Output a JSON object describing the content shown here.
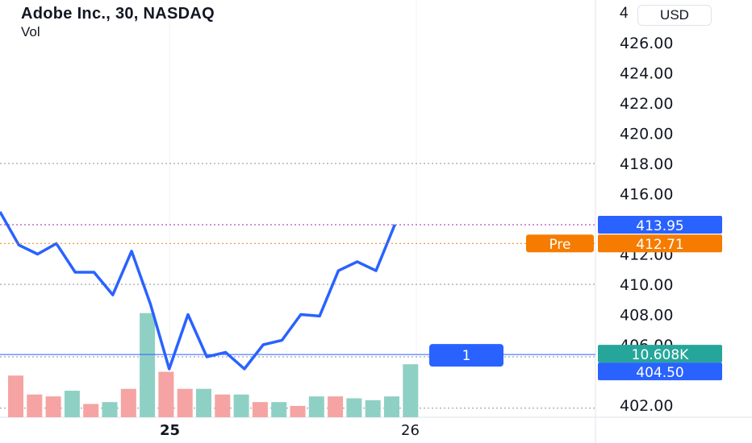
{
  "header": {
    "title": "Adobe Inc., 30, NASDAQ",
    "volume_label": "Vol"
  },
  "currency": {
    "prefix": "4",
    "label": "USD"
  },
  "colors": {
    "line": "#2962ff",
    "volume_up": "#8fd0c5",
    "volume_down": "#f5a3a3",
    "pre_market": "#f57c00",
    "last_price": "#2962ff",
    "volume_label": "#26a69a"
  },
  "chart_data": {
    "type": "line",
    "x_ticks": [
      "25",
      "26"
    ],
    "y_ticks": [
      "426.00",
      "424.00",
      "422.00",
      "420.00",
      "418.00",
      "416.00",
      "412.00",
      "410.00",
      "408.00",
      "406.00",
      "402.00"
    ],
    "ylim": [
      401.0,
      429.3
    ],
    "grid": true,
    "series": [
      {
        "x": [
          0,
          1,
          2,
          3,
          4,
          5,
          6,
          7,
          8,
          9,
          10,
          11,
          12,
          13,
          14,
          15,
          16,
          17,
          18,
          19,
          20,
          21
        ],
        "values": [
          414.8,
          412.6,
          412.0,
          412.7,
          410.8,
          410.8,
          409.3,
          412.2,
          408.7,
          404.4,
          408.0,
          405.2,
          405.5,
          404.4,
          406.0,
          406.3,
          408.0,
          407.9,
          410.9,
          411.5,
          410.9,
          413.95
        ]
      }
    ],
    "volume": {
      "x": [
        0,
        1,
        2,
        3,
        4,
        5,
        6,
        7,
        8,
        9,
        10,
        11,
        12,
        13,
        14,
        15,
        16,
        17,
        18,
        19,
        20,
        21
      ],
      "values": [
        2.2,
        1.2,
        1.1,
        1.4,
        0.7,
        0.8,
        1.5,
        5.5,
        2.4,
        1.5,
        1.5,
        1.2,
        1.2,
        0.8,
        0.8,
        0.6,
        1.1,
        1.1,
        1.0,
        0.9,
        1.1,
        2.8
      ],
      "direction": [
        "down",
        "down",
        "down",
        "up",
        "down",
        "up",
        "down",
        "up",
        "down",
        "down",
        "up",
        "down",
        "up",
        "down",
        "up",
        "down",
        "up",
        "down",
        "up",
        "up",
        "up",
        "up"
      ]
    },
    "labels": {
      "last_price": "413.95",
      "pre_tag": "Pre",
      "pre_price": "412.71",
      "crosshair_price": "404.50",
      "crosshair_volume": "10.608K",
      "crosshair_badge": "1"
    }
  }
}
